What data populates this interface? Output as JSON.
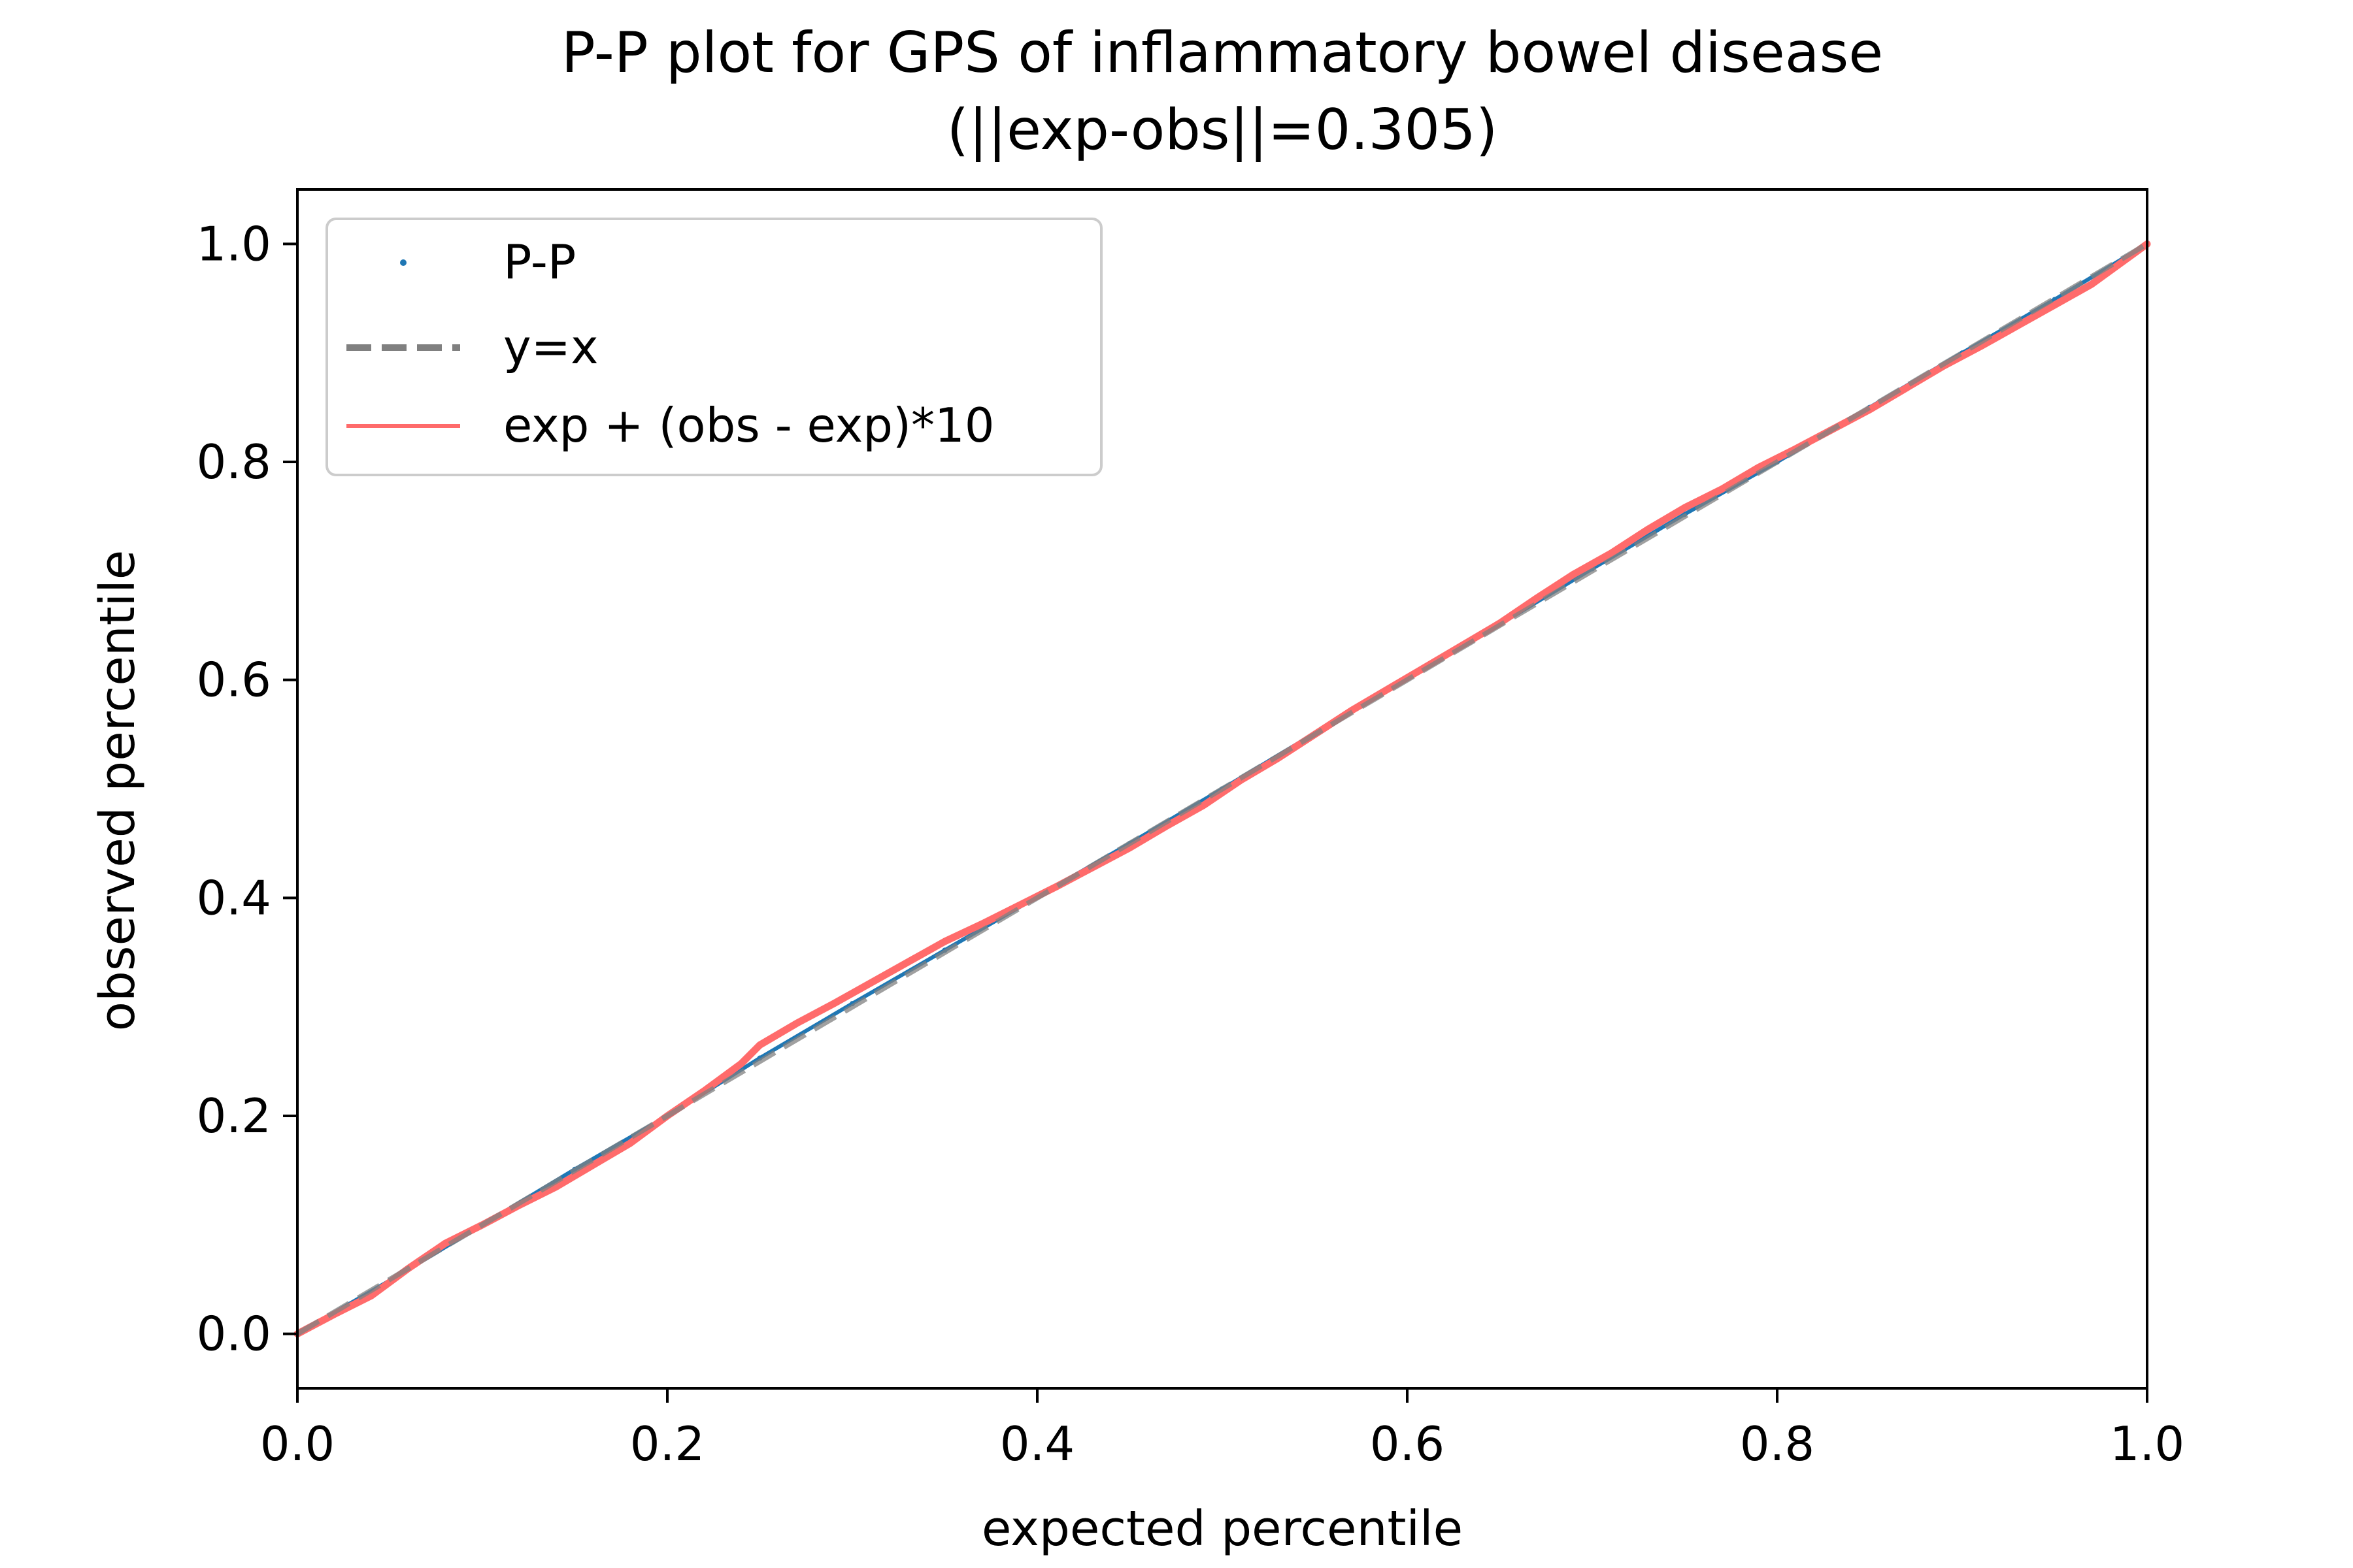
{
  "chart_data": {
    "type": "line",
    "title_line1": "P-P plot for GPS of inflammatory bowel disease",
    "title_line2": "(||exp-obs||=0.305)",
    "xlabel": "expected percentile",
    "ylabel": "observed percentile",
    "xlim": [
      0.0,
      1.0
    ],
    "ylim": [
      -0.05,
      1.05
    ],
    "x_ticks": [
      "0.0",
      "0.2",
      "0.4",
      "0.6",
      "0.8",
      "1.0"
    ],
    "y_ticks": [
      "0.0",
      "0.2",
      "0.4",
      "0.6",
      "0.8",
      "1.0"
    ],
    "grid": false,
    "legend_position": "top-left",
    "series": [
      {
        "name": "P-P",
        "style": "points",
        "color": "#1f77b4",
        "x": [
          0.0,
          0.05,
          0.1,
          0.15,
          0.2,
          0.25,
          0.3,
          0.35,
          0.4,
          0.45,
          0.5,
          0.55,
          0.6,
          0.65,
          0.7,
          0.75,
          0.8,
          0.85,
          0.9,
          0.95,
          1.0
        ],
        "y": [
          0.0,
          0.049,
          0.1,
          0.151,
          0.2,
          0.253,
          0.303,
          0.352,
          0.401,
          0.45,
          0.5,
          0.551,
          0.601,
          0.651,
          0.702,
          0.752,
          0.8,
          0.85,
          0.9,
          0.949,
          1.0
        ]
      },
      {
        "name": "y=x",
        "style": "dashed",
        "color": "#808080",
        "x": [
          0.0,
          1.0
        ],
        "y": [
          0.0,
          1.0
        ]
      },
      {
        "name": "exp + (obs - exp)*10",
        "style": "line",
        "color": "#ff6b6b",
        "x": [
          0.0,
          0.02,
          0.04,
          0.06,
          0.08,
          0.1,
          0.12,
          0.14,
          0.16,
          0.18,
          0.2,
          0.22,
          0.24,
          0.25,
          0.27,
          0.29,
          0.31,
          0.33,
          0.35,
          0.37,
          0.39,
          0.41,
          0.43,
          0.45,
          0.47,
          0.49,
          0.51,
          0.53,
          0.55,
          0.57,
          0.59,
          0.61,
          0.63,
          0.65,
          0.67,
          0.69,
          0.71,
          0.73,
          0.75,
          0.77,
          0.79,
          0.81,
          0.83,
          0.85,
          0.87,
          0.89,
          0.91,
          0.93,
          0.95,
          0.97,
          1.0
        ],
        "y": [
          0.0,
          0.018,
          0.035,
          0.06,
          0.083,
          0.1,
          0.118,
          0.135,
          0.155,
          0.175,
          0.2,
          0.223,
          0.248,
          0.265,
          0.285,
          0.303,
          0.322,
          0.341,
          0.36,
          0.376,
          0.393,
          0.41,
          0.428,
          0.446,
          0.466,
          0.485,
          0.508,
          0.528,
          0.55,
          0.572,
          0.592,
          0.612,
          0.632,
          0.652,
          0.675,
          0.697,
          0.716,
          0.738,
          0.758,
          0.775,
          0.795,
          0.812,
          0.83,
          0.848,
          0.868,
          0.888,
          0.906,
          0.925,
          0.944,
          0.963,
          1.0
        ]
      }
    ]
  }
}
